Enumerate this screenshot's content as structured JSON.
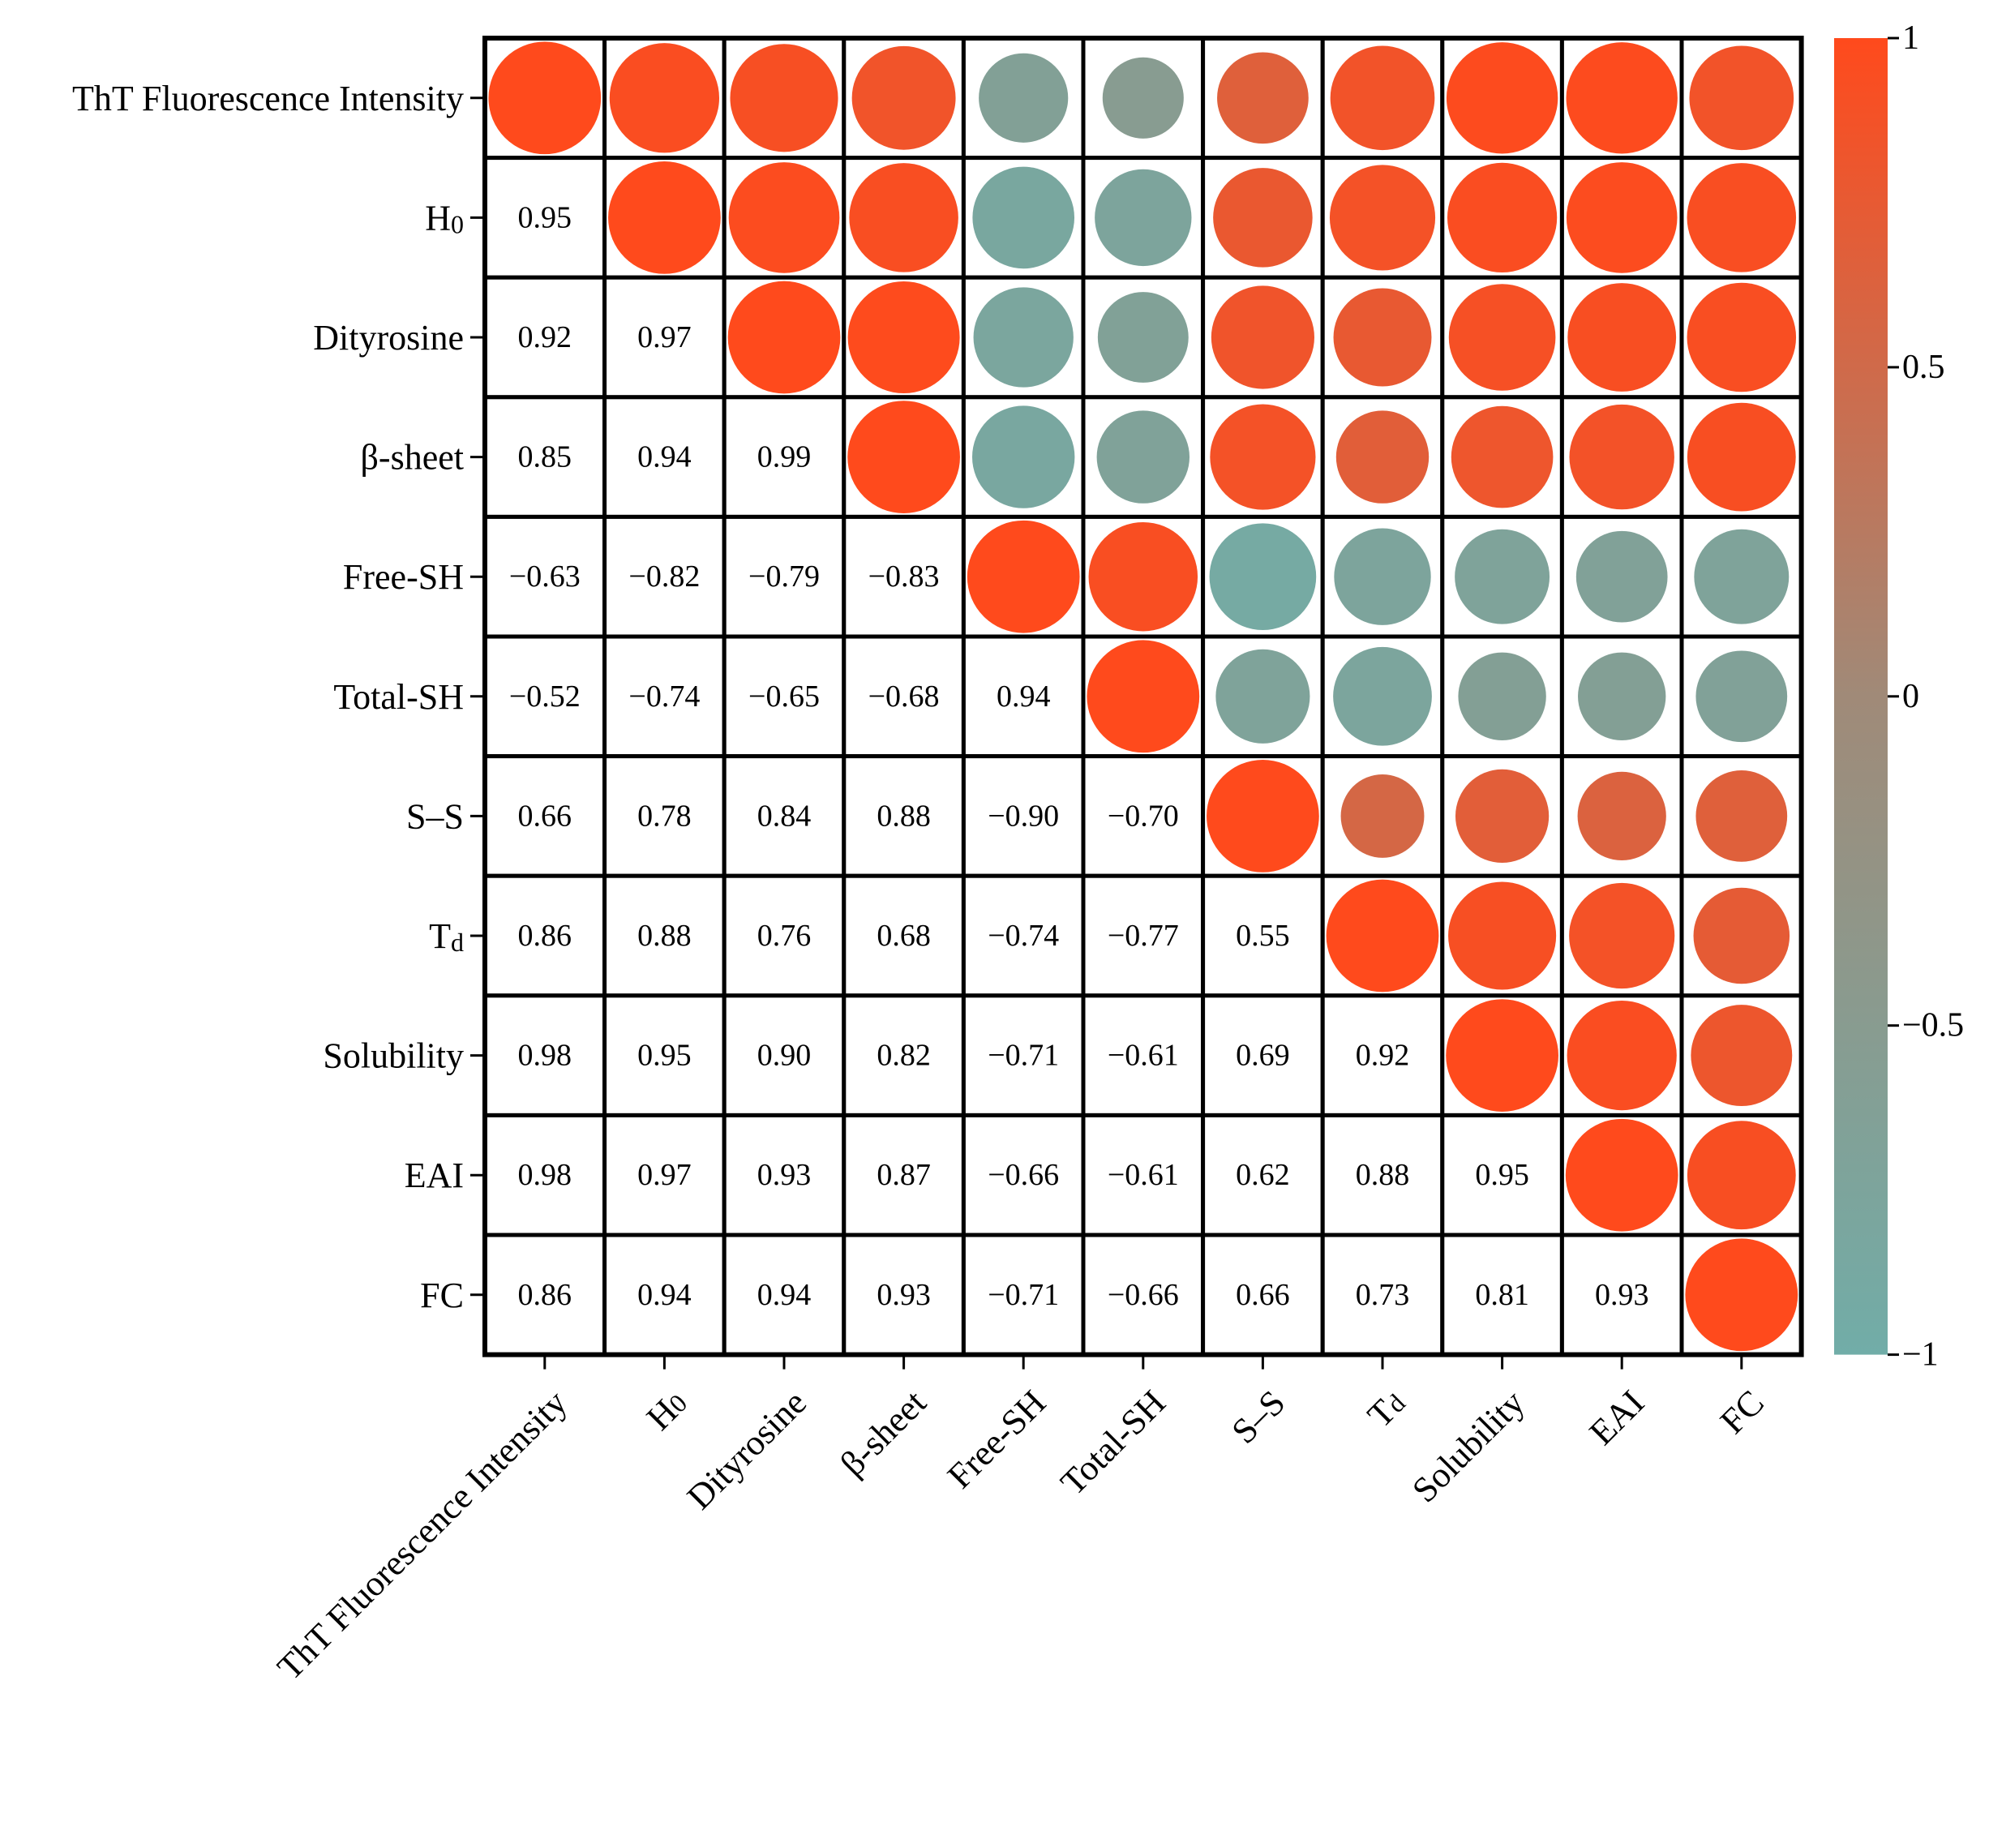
{
  "chart_data": {
    "type": "heatmap",
    "variables": [
      {
        "name": "ThT Fluorescence Intensity",
        "sub": ""
      },
      {
        "name": "H",
        "sub": "0"
      },
      {
        "name": "Dityrosine",
        "sub": ""
      },
      {
        "name": "β-sheet",
        "sub": ""
      },
      {
        "name": "Free-SH",
        "sub": ""
      },
      {
        "name": "Total-SH",
        "sub": ""
      },
      {
        "name": "S–S",
        "sub": ""
      },
      {
        "name": "T",
        "sub": "d"
      },
      {
        "name": "Solubility",
        "sub": ""
      },
      {
        "name": "EAI",
        "sub": ""
      },
      {
        "name": "FC",
        "sub": ""
      }
    ],
    "matrix": [
      [
        1.0,
        0.95,
        0.92,
        0.85,
        -0.63,
        -0.52,
        0.66,
        0.86,
        0.98,
        0.98,
        0.86
      ],
      [
        0.95,
        1.0,
        0.97,
        0.94,
        -0.82,
        -0.74,
        0.78,
        0.88,
        0.95,
        0.97,
        0.94
      ],
      [
        0.92,
        0.97,
        1.0,
        0.99,
        -0.79,
        -0.65,
        0.84,
        0.76,
        0.9,
        0.93,
        0.94
      ],
      [
        0.85,
        0.94,
        0.99,
        1.0,
        -0.83,
        -0.68,
        0.88,
        0.68,
        0.82,
        0.87,
        0.93
      ],
      [
        -0.63,
        -0.82,
        -0.79,
        -0.83,
        1.0,
        0.94,
        -0.9,
        -0.74,
        -0.71,
        -0.66,
        -0.71
      ],
      [
        -0.52,
        -0.74,
        -0.65,
        -0.68,
        0.94,
        1.0,
        -0.7,
        -0.77,
        -0.61,
        -0.61,
        -0.66
      ],
      [
        0.66,
        0.78,
        0.84,
        0.88,
        -0.9,
        -0.7,
        1.0,
        0.55,
        0.69,
        0.62,
        0.66
      ],
      [
        0.86,
        0.88,
        0.76,
        0.68,
        -0.74,
        -0.77,
        0.55,
        1.0,
        0.92,
        0.88,
        0.73
      ],
      [
        0.98,
        0.95,
        0.9,
        0.82,
        -0.71,
        -0.61,
        0.69,
        0.92,
        1.0,
        0.95,
        0.81
      ],
      [
        0.98,
        0.97,
        0.93,
        0.87,
        -0.66,
        -0.61,
        0.62,
        0.88,
        0.95,
        1.0,
        0.93
      ],
      [
        0.86,
        0.94,
        0.94,
        0.93,
        -0.71,
        -0.66,
        0.66,
        0.73,
        0.81,
        0.93,
        1.0
      ]
    ],
    "lower_triangle": "numbers",
    "upper_triangle": "circles",
    "circle_encoding": "area proportional to |r|, color by r",
    "value_range": [
      -1,
      1
    ],
    "colorbar": {
      "ticks": [
        1,
        0.5,
        0,
        -0.5,
        -1
      ],
      "tick_labels": [
        "1",
        "0.5",
        "0",
        "−0.5",
        "−1"
      ],
      "colors": {
        "high": "#ff4a1c",
        "mid": "#a08a78",
        "low": "#71ada8"
      }
    },
    "title": "",
    "xlabel": "",
    "ylabel": "",
    "grid": true,
    "legend": "right colorbar"
  }
}
